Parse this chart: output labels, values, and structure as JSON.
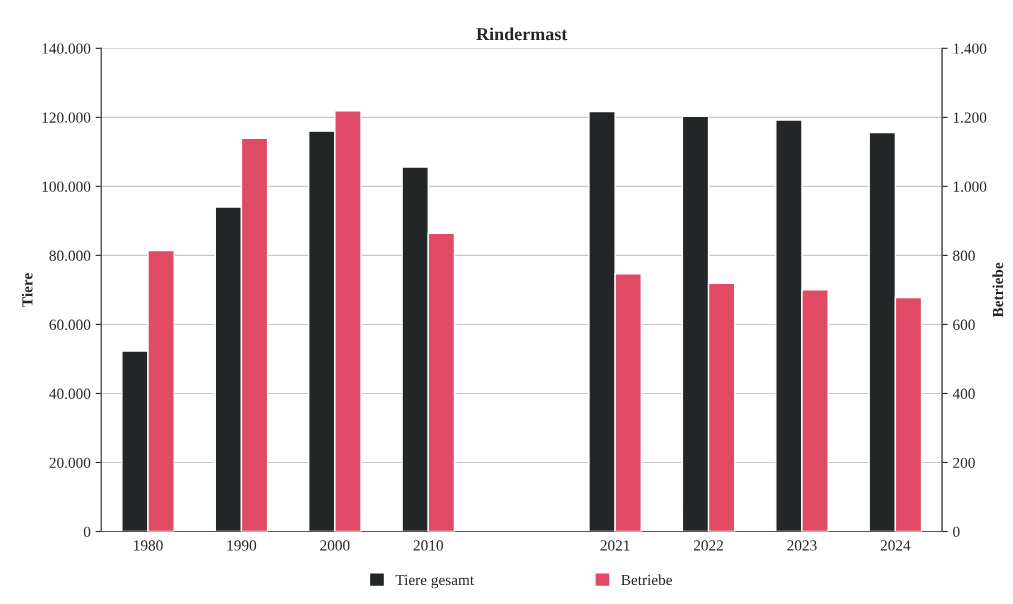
{
  "chart_data": {
    "type": "bar",
    "title": "Rindermast",
    "ylabel": "Tiere",
    "y2label": "Betriebe",
    "categories": [
      "1980",
      "1990",
      "2000",
      "2010",
      null,
      "2021",
      "2022",
      "2023",
      "2024"
    ],
    "series": [
      {
        "name": "Tiere gesamt",
        "color": "#222626",
        "values": [
          52300,
          94000,
          116000,
          105600,
          null,
          121700,
          120300,
          119200,
          115600
        ]
      },
      {
        "name": "Betriebe",
        "color": "#e04a64",
        "axis": "y2",
        "values": [
          814,
          1139,
          1219,
          864,
          null,
          747,
          719,
          700,
          678
        ]
      }
    ],
    "ylim": [
      0,
      140000
    ],
    "yticks": [
      {
        "value": 0,
        "label": "0"
      },
      {
        "value": 20000,
        "label": "20.000"
      },
      {
        "value": 40000,
        "label": "40.000"
      },
      {
        "value": 60000,
        "label": "60.000"
      },
      {
        "value": 80000,
        "label": "80.000"
      },
      {
        "value": 100000,
        "label": "100.000"
      },
      {
        "value": 120000,
        "label": "120.000"
      },
      {
        "value": 140000,
        "label": "140.000"
      }
    ],
    "y2lim": [
      0,
      1400
    ],
    "y2ticks": [
      0,
      200,
      400,
      600,
      800,
      {
        "value": 1000,
        "label": "1.000"
      },
      {
        "value": 1200,
        "label": "1.200"
      },
      {
        "value": 1400,
        "label": "1.400"
      }
    ],
    "grid": "y",
    "legend": "bottom"
  }
}
